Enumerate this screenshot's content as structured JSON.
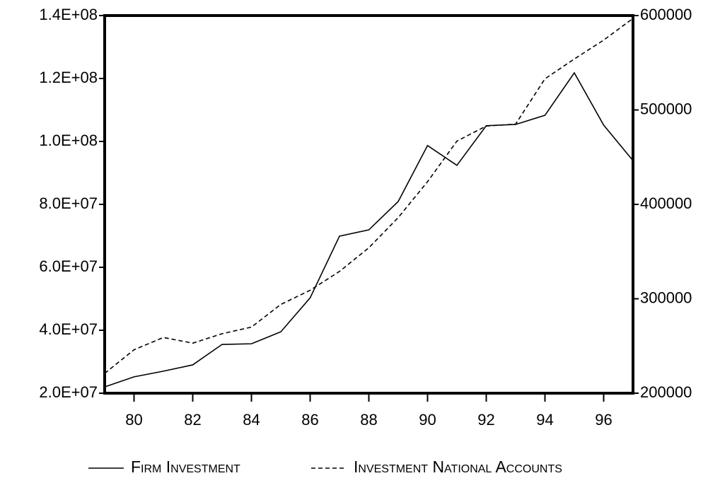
{
  "chart_data": {
    "type": "line",
    "x": [
      79,
      80,
      81,
      82,
      83,
      84,
      85,
      86,
      87,
      88,
      89,
      90,
      91,
      92,
      93,
      94,
      95,
      96,
      97
    ],
    "xlim": [
      79,
      97
    ],
    "xticks": [
      80,
      82,
      84,
      86,
      88,
      90,
      92,
      94,
      96
    ],
    "ylim": [
      20000000,
      140000000
    ],
    "yticks": [
      {
        "value": 20000000,
        "label": "2.0E+07"
      },
      {
        "value": 40000000,
        "label": "4.0E+07"
      },
      {
        "value": 60000000,
        "label": "6.0E+07"
      },
      {
        "value": 80000000,
        "label": "8.0E+07"
      },
      {
        "value": 100000000,
        "label": "1.0E+08"
      },
      {
        "value": 120000000,
        "label": "1.2E+08"
      },
      {
        "value": 140000000,
        "label": "1.4E+08"
      }
    ],
    "y2lim": [
      200000,
      600000
    ],
    "y2ticks": [
      200000,
      300000,
      400000,
      500000,
      600000
    ],
    "grid": false,
    "legend": "bottom",
    "series": [
      {
        "name": "Firm Investment",
        "color": "#000000",
        "line_style": "solid",
        "values": [
          22000000,
          25200000,
          27000000,
          29000000,
          35500000,
          35700000,
          39500000,
          50300000,
          69900000,
          71900000,
          80900000,
          98700000,
          92400000,
          105000000,
          105400000,
          108300000,
          121800000,
          105200000,
          93900000
        ]
      },
      {
        "name": "Investment National Accounts",
        "color": "#000000",
        "line_style": "dashed",
        "axis": "y2",
        "values": [
          221000,
          246000,
          259000,
          253000,
          263000,
          270000,
          294000,
          309000,
          329000,
          354000,
          386000,
          424000,
          467000,
          483000,
          485000,
          533000,
          554000,
          574000,
          597000
        ]
      }
    ]
  }
}
